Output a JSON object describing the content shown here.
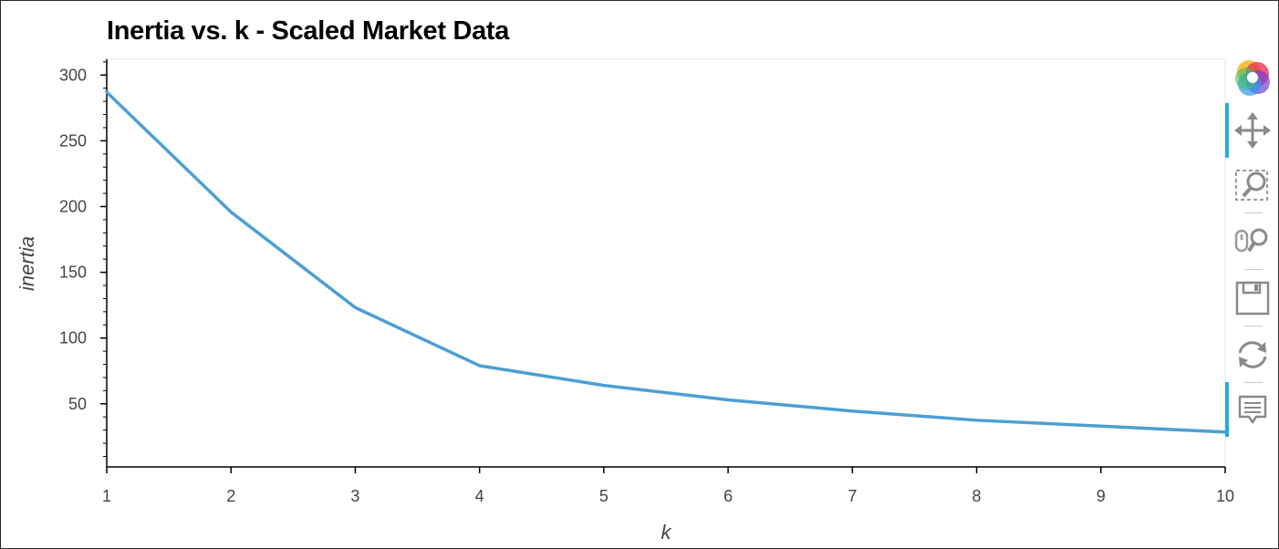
{
  "chart_data": {
    "type": "line",
    "title": "Inertia vs. k - Scaled Market Data",
    "xlabel": "k",
    "ylabel": "inertia",
    "x": [
      1,
      2,
      3,
      4,
      5,
      6,
      7,
      8,
      9,
      10
    ],
    "series": [
      {
        "values": [
          287.0,
          195.8,
          123.2,
          79.0,
          64.0,
          53.0,
          44.5,
          37.5,
          33.0,
          28.5
        ]
      }
    ],
    "xlim": [
      1,
      10
    ],
    "ylim": [
      2,
      312
    ],
    "x_ticks": [
      "1",
      "2",
      "3",
      "4",
      "5",
      "6",
      "7",
      "8",
      "9",
      "10"
    ],
    "y_ticks": [
      "50",
      "100",
      "150",
      "200",
      "250",
      "300"
    ],
    "y_tick_values": [
      50,
      100,
      150,
      200,
      250,
      300
    ],
    "grid": false,
    "line_color": "#4c9fd4"
  },
  "toolbar": {
    "tools": [
      {
        "name": "bokeh-logo-icon",
        "active": false
      },
      {
        "name": "pan-tool-icon",
        "active": true
      },
      {
        "name": "box-zoom-tool-icon",
        "active": false
      },
      {
        "name": "wheel-zoom-tool-icon",
        "active": false
      },
      {
        "name": "save-tool-icon",
        "active": false
      },
      {
        "name": "reset-tool-icon",
        "active": false
      },
      {
        "name": "hover-tool-icon",
        "active": true
      }
    ]
  }
}
